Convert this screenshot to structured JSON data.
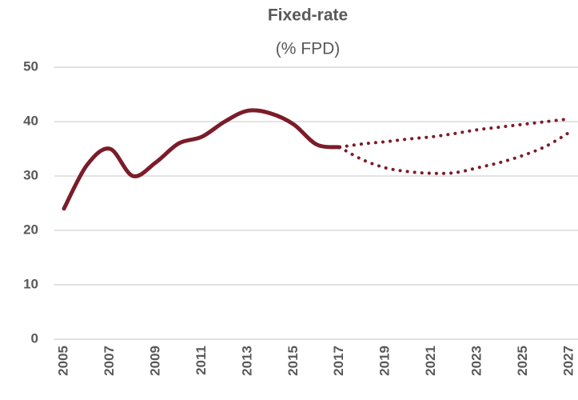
{
  "chart_data": {
    "type": "line",
    "title": "Fixed-rate",
    "subtitle": "(% FPD)",
    "x": [
      2005,
      2006,
      2007,
      2008,
      2009,
      2010,
      2011,
      2012,
      2013,
      2014,
      2015,
      2016,
      2017,
      2018,
      2019,
      2020,
      2021,
      2022,
      2023,
      2024,
      2025,
      2026,
      2027
    ],
    "series": [
      {
        "color": "#7b1c2a",
        "style": "solid",
        "values": [
          24,
          32,
          35,
          30,
          32.5,
          36,
          37.2,
          40,
          42,
          41.5,
          39.5,
          35.8,
          35.3,
          null,
          null,
          null,
          null,
          null,
          null,
          null,
          null,
          null,
          null
        ]
      },
      {
        "color": "#7b1c2a",
        "style": "dotted",
        "values": [
          null,
          null,
          null,
          null,
          null,
          null,
          null,
          null,
          null,
          null,
          null,
          null,
          35.3,
          35.9,
          36.3,
          36.8,
          37.2,
          37.8,
          38.5,
          39,
          39.5,
          40,
          40.5
        ]
      },
      {
        "color": "#7b1c2a",
        "style": "dotted",
        "values": [
          null,
          null,
          null,
          null,
          null,
          null,
          null,
          null,
          null,
          null,
          null,
          null,
          35.3,
          33,
          31.5,
          30.8,
          30.5,
          30.6,
          31.5,
          32.5,
          33.8,
          35.5,
          38
        ]
      }
    ],
    "xlim": [
      2005,
      2027
    ],
    "xticks": [
      2005,
      2007,
      2009,
      2011,
      2013,
      2015,
      2017,
      2019,
      2021,
      2023,
      2025,
      2027
    ],
    "ylim": [
      0,
      50
    ],
    "yticks": [
      0,
      10,
      20,
      30,
      40,
      50
    ],
    "grid": true
  }
}
